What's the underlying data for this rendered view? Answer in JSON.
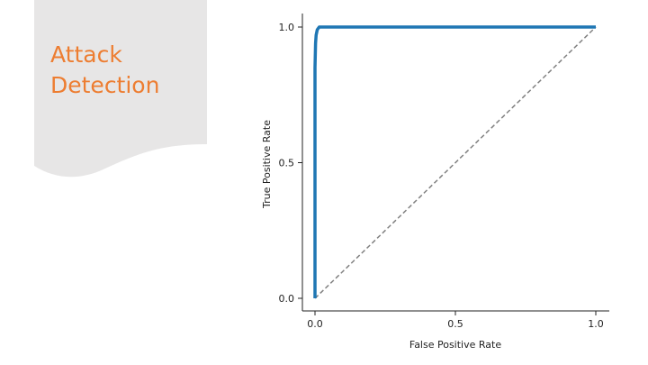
{
  "slide": {
    "title_lines": [
      "Attack",
      "Detection"
    ],
    "title_color": "#ed7d31",
    "panel_color": "#e7e6e6"
  },
  "chart_data": {
    "type": "line",
    "title": "",
    "xlabel": "False Positive Rate",
    "ylabel": "True Positive Rate",
    "xlim": [
      0.0,
      1.0
    ],
    "ylim": [
      0.0,
      1.0
    ],
    "xticks": [
      0.0,
      0.5,
      1.0
    ],
    "yticks": [
      0.0,
      0.5,
      1.0
    ],
    "xtick_labels": [
      "0.0",
      "0.5",
      "1.0"
    ],
    "ytick_labels": [
      "0.0",
      "0.5",
      "1.0"
    ],
    "grid": false,
    "legend": "none",
    "series": [
      {
        "style": "solid",
        "color": "#1f77b4",
        "x": [
          0.0,
          0.0,
          0.002,
          0.004,
          0.008,
          0.015,
          0.03,
          1.0
        ],
        "y": [
          0.0,
          0.85,
          0.94,
          0.97,
          0.99,
          1.0,
          1.0,
          1.0
        ]
      },
      {
        "style": "dashed",
        "color": "#808080",
        "x": [
          0.0,
          1.0
        ],
        "y": [
          0.0,
          1.0
        ]
      }
    ]
  }
}
